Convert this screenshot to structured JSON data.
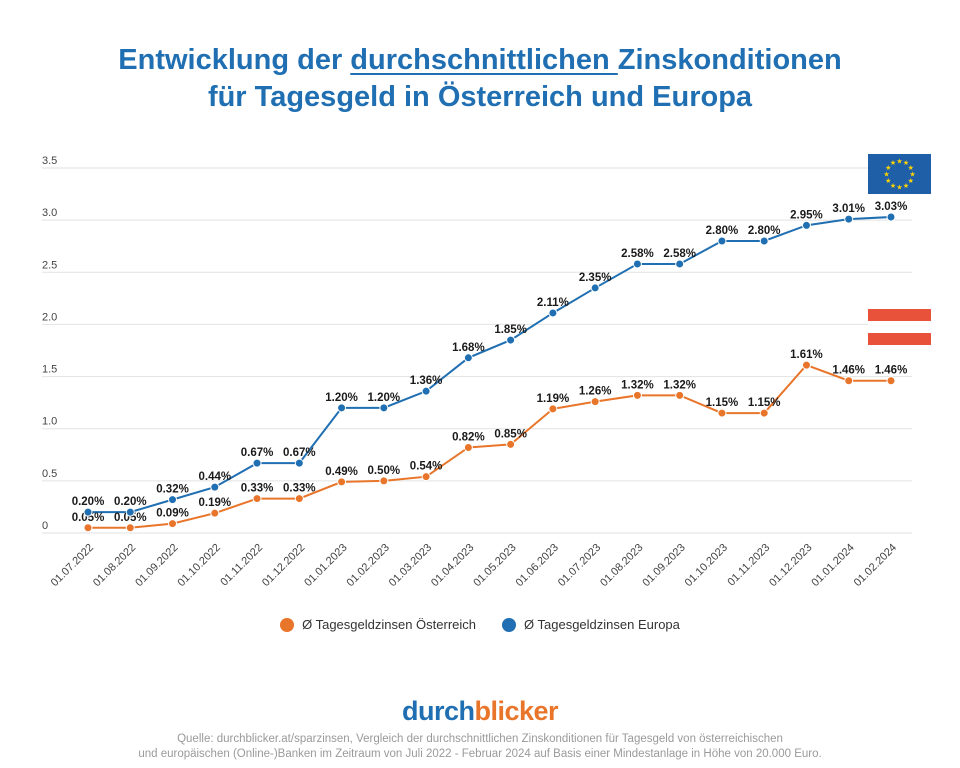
{
  "title": {
    "line1_pre": "Entwicklung der ",
    "line1_underlined": "durchschnittlichen ",
    "line1_post": "Zinskonditionen",
    "line2": "für Tagesgeld in Österreich und Europa"
  },
  "chart_data": {
    "type": "line",
    "categories": [
      "01.07.2022",
      "01.08.2022",
      "01.09.2022",
      "01.10.2022",
      "01.11.2022",
      "01.12.2022",
      "01.01.2023",
      "01.02.2023",
      "01.03.2023",
      "01.04.2023",
      "01.05.2023",
      "01.06.2023",
      "01.07.2023",
      "01.08.2023",
      "01.09.2023",
      "01.10.2023",
      "01.11.2023",
      "01.12.2023",
      "01.01.2024",
      "01.02.2024"
    ],
    "series": [
      {
        "name": "Ø Tagesgeldzinsen Österreich",
        "color": "#e8752a",
        "values": [
          0.05,
          0.05,
          0.09,
          0.19,
          0.33,
          0.33,
          0.49,
          0.5,
          0.54,
          0.82,
          0.85,
          1.19,
          1.26,
          1.32,
          1.32,
          1.15,
          1.15,
          1.61,
          1.46,
          1.46
        ],
        "labels": [
          "0.05%",
          "0.05%",
          "0.09%",
          "0.19%",
          "0.33%",
          "0.33%",
          "0.49%",
          "0.50%",
          "0.54%",
          "0.82%",
          "0.85%",
          "1.19%",
          "1.26%",
          "1.32%",
          "1.32%",
          "1.15%",
          "1.15%",
          "1.61%",
          "1.46%",
          "1.46%"
        ]
      },
      {
        "name": "Ø Tagesgeldzinsen Europa",
        "color": "#1f6fb2",
        "values": [
          0.2,
          0.2,
          0.32,
          0.44,
          0.67,
          0.67,
          1.2,
          1.2,
          1.36,
          1.68,
          1.85,
          2.11,
          2.35,
          2.58,
          2.58,
          2.8,
          2.8,
          2.95,
          3.01,
          3.03
        ],
        "labels": [
          "0.20%",
          "0.20%",
          "0.32%",
          "0.44%",
          "0.67%",
          "0.67%",
          "1.20%",
          "1.20%",
          "1.36%",
          "1.68%",
          "1.85%",
          "2.11%",
          "2.35%",
          "2.58%",
          "2.58%",
          "2.80%",
          "2.80%",
          "2.95%",
          "3.01%",
          "3.03%"
        ]
      }
    ],
    "yticks": [
      0,
      0.5,
      1.0,
      1.5,
      2.0,
      2.5,
      3.0,
      3.5
    ],
    "ytick_labels": [
      "0",
      "0.5",
      "1.0",
      "1.5",
      "2.0",
      "2.5",
      "3.0",
      "3.5"
    ],
    "ylim": [
      0,
      3.5
    ],
    "grid": true,
    "legend_position": "bottom-center"
  },
  "flags": {
    "eu": "eu-flag",
    "at": "austria-flag",
    "eu_color": "#1f5fa8",
    "eu_star_color": "#ffd400",
    "at_red": "#e8523a"
  },
  "legend": {
    "austria": "Ø Tagesgeldzinsen Österreich",
    "europe": "Ø Tagesgeldzinsen Europa"
  },
  "brand": {
    "part1": "durch",
    "part2": "blicker"
  },
  "source": {
    "line1": "Quelle: durchblicker.at/sparzinsen, Vergleich der durchschnittlichen Zinskonditionen für Tagesgeld von österreichischen",
    "line2": "und europäischen (Online-)Banken im Zeitraum von Juli 2022 - Februar 2024 auf Basis einer Mindestanlage in Höhe von 20.000 Euro."
  }
}
